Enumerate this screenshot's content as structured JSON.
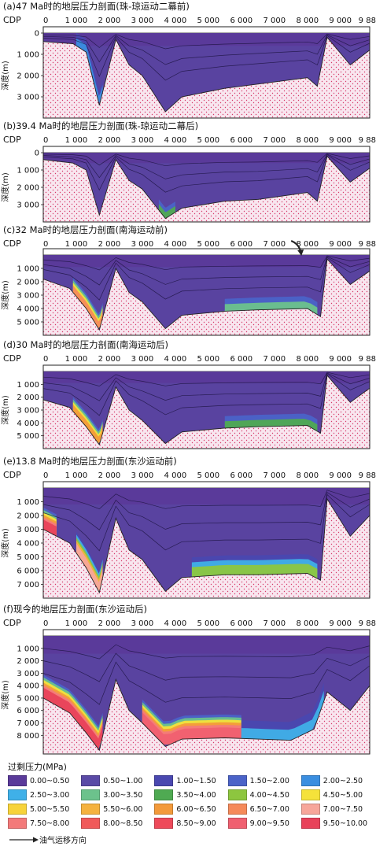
{
  "chart_data": [
    {
      "type": "area",
      "title": "(a)47 Ma时的地层压力剖面(珠-琼运动二幕前)",
      "xlabel": "CDP",
      "ylabel": "深度(m)",
      "x_ticks": [
        "0",
        "1 000",
        "2 000",
        "3 000",
        "4 000",
        "5 000",
        "6 000",
        "7 000",
        "8 000",
        "9 000",
        "9 888"
      ],
      "y_ticks": [
        "0",
        "1 000",
        "2 000",
        "3 000"
      ],
      "xlim": [
        0,
        9888
      ],
      "ylim": [
        0,
        4000
      ],
      "basement_depth": [
        [
          0,
          400
        ],
        [
          900,
          500
        ],
        [
          1300,
          900
        ],
        [
          1700,
          3400
        ],
        [
          2200,
          300
        ],
        [
          2600,
          1500
        ],
        [
          3000,
          2000
        ],
        [
          3700,
          3700
        ],
        [
          4200,
          3000
        ],
        [
          5500,
          2600
        ],
        [
          6500,
          2400
        ],
        [
          8000,
          2100
        ],
        [
          8300,
          2500
        ],
        [
          8600,
          200
        ],
        [
          9300,
          1500
        ],
        [
          9888,
          800
        ]
      ],
      "high_pressure_zones": [
        {
          "x_range": [
            1000,
            1800
          ],
          "max_pressure": 2.0
        }
      ],
      "migration_arrow": false
    },
    {
      "type": "area",
      "title": "(b)39.4 Ma时的地层压力剖面(珠-琼运动二幕后)",
      "xlabel": "CDP",
      "ylabel": "深度(m)",
      "x_ticks": [
        "0",
        "1 000",
        "2 000",
        "3 000",
        "4 000",
        "5 000",
        "6 000",
        "7 000",
        "8 000",
        "9 000",
        "9 888"
      ],
      "y_ticks": [
        "0",
        "1 000",
        "2 000",
        "3 000"
      ],
      "xlim": [
        0,
        9888
      ],
      "ylim": [
        0,
        4000
      ],
      "basement_depth": [
        [
          0,
          400
        ],
        [
          900,
          600
        ],
        [
          1300,
          1000
        ],
        [
          1700,
          3600
        ],
        [
          2200,
          400
        ],
        [
          2600,
          1600
        ],
        [
          3000,
          2100
        ],
        [
          3700,
          3800
        ],
        [
          4200,
          3200
        ],
        [
          5500,
          2800
        ],
        [
          6500,
          2700
        ],
        [
          8000,
          2300
        ],
        [
          8300,
          2800
        ],
        [
          8600,
          200
        ],
        [
          9300,
          1700
        ],
        [
          9888,
          900
        ]
      ],
      "high_pressure_zones": [
        {
          "x_range": [
            3500,
            4000
          ],
          "max_pressure": 3.5
        }
      ],
      "migration_arrow": false
    },
    {
      "type": "area",
      "title": "(c)32 Ma时的地层压力剖面(南海运动前)",
      "xlabel": "CDP",
      "ylabel": "深度(m)",
      "x_ticks": [
        "0",
        "1 000",
        "2 000",
        "3 000",
        "4 000",
        "5 000",
        "6 000",
        "7 000",
        "8 000",
        "9 000",
        "9 888"
      ],
      "y_ticks": [
        "1 000",
        "2 000",
        "3 000",
        "4 000",
        "5 000"
      ],
      "xlim": [
        0,
        9888
      ],
      "ylim": [
        0,
        6000
      ],
      "basement_depth": [
        [
          0,
          1800
        ],
        [
          800,
          2500
        ],
        [
          1300,
          4000
        ],
        [
          1700,
          5600
        ],
        [
          2200,
          1000
        ],
        [
          2600,
          2800
        ],
        [
          3000,
          3500
        ],
        [
          3700,
          5500
        ],
        [
          4200,
          4500
        ],
        [
          5500,
          4200
        ],
        [
          6500,
          4100
        ],
        [
          8000,
          4000
        ],
        [
          8400,
          4600
        ],
        [
          8600,
          300
        ],
        [
          9300,
          2200
        ],
        [
          9888,
          1200
        ]
      ],
      "high_pressure_zones": [
        {
          "x_range": [
            900,
            1800
          ],
          "max_pressure": 6.5
        },
        {
          "x_range": [
            5500,
            8300
          ],
          "max_pressure": 3.0
        }
      ],
      "migration_arrow": true
    },
    {
      "type": "area",
      "title": "(d)30 Ma时的地层压力剖面(南海运动后)",
      "xlabel": "CDP",
      "ylabel": "深度(m)",
      "x_ticks": [
        "0",
        "1 000",
        "2 000",
        "3 000",
        "4 000",
        "5 000",
        "6 000",
        "7 000",
        "8 000",
        "9 000",
        "9 888"
      ],
      "y_ticks": [
        "1 000",
        "2 000",
        "3 000",
        "4 000",
        "5 000"
      ],
      "xlim": [
        0,
        9888
      ],
      "ylim": [
        0,
        6000
      ],
      "basement_depth": [
        [
          0,
          2200
        ],
        [
          800,
          2800
        ],
        [
          1300,
          4300
        ],
        [
          1700,
          5700
        ],
        [
          2200,
          1200
        ],
        [
          2600,
          3000
        ],
        [
          3000,
          3800
        ],
        [
          3700,
          5600
        ],
        [
          4200,
          4700
        ],
        [
          5500,
          4400
        ],
        [
          6500,
          4300
        ],
        [
          8000,
          4200
        ],
        [
          8400,
          4800
        ],
        [
          8600,
          300
        ],
        [
          9300,
          2400
        ],
        [
          9888,
          1300
        ]
      ],
      "high_pressure_zones": [
        {
          "x_range": [
            900,
            1800
          ],
          "max_pressure": 6.0
        },
        {
          "x_range": [
            5500,
            8300
          ],
          "max_pressure": 3.5
        }
      ],
      "migration_arrow": false
    },
    {
      "type": "area",
      "title": "(e)13.8 Ma时的地层压力剖面(东沙运动前)",
      "xlabel": "CDP",
      "ylabel": "深度(m)",
      "x_ticks": [
        "0",
        "1 000",
        "2 000",
        "3 000",
        "4 000",
        "5 000",
        "6 000",
        "7 000",
        "8 000",
        "9 000",
        "9 888"
      ],
      "y_ticks": [
        "1 000",
        "2 000",
        "3 000",
        "4 000",
        "5 000",
        "6 000",
        "7 000"
      ],
      "xlim": [
        0,
        9888
      ],
      "ylim": [
        0,
        8000
      ],
      "basement_depth": [
        [
          0,
          3000
        ],
        [
          800,
          4000
        ],
        [
          1300,
          5800
        ],
        [
          1700,
          7600
        ],
        [
          2200,
          2200
        ],
        [
          2600,
          4500
        ],
        [
          3000,
          5200
        ],
        [
          3700,
          7500
        ],
        [
          4200,
          6500
        ],
        [
          5500,
          6300
        ],
        [
          6500,
          6300
        ],
        [
          8000,
          6200
        ],
        [
          8400,
          6700
        ],
        [
          8600,
          800
        ],
        [
          9300,
          3500
        ],
        [
          9888,
          2000
        ]
      ],
      "high_pressure_zones": [
        {
          "x_range": [
            0,
            400
          ],
          "max_pressure": 9.5
        },
        {
          "x_range": [
            1000,
            1800
          ],
          "max_pressure": 7.0
        },
        {
          "x_range": [
            4500,
            8300
          ],
          "max_pressure": 4.0
        }
      ],
      "migration_arrow": false
    },
    {
      "type": "area",
      "title": "(f)现今的地层压力剖面(东沙运动后)",
      "xlabel": "CDP",
      "ylabel": "深度(m)",
      "x_ticks": [
        "0",
        "1 000",
        "2 000",
        "3 000",
        "4 000",
        "5 000",
        "6 000",
        "7 000",
        "8 000",
        "9 000",
        "9 888"
      ],
      "y_ticks": [
        "1 000",
        "2 000",
        "3 000",
        "4 000",
        "5 000",
        "6 000",
        "7 000",
        "8 000"
      ],
      "xlim": [
        0,
        9888
      ],
      "ylim": [
        0,
        9500
      ],
      "basement_depth": [
        [
          0,
          5000
        ],
        [
          800,
          6200
        ],
        [
          1300,
          7800
        ],
        [
          1700,
          9200
        ],
        [
          2200,
          3500
        ],
        [
          2600,
          6000
        ],
        [
          3000,
          7000
        ],
        [
          3700,
          8900
        ],
        [
          4200,
          8300
        ],
        [
          5500,
          8200
        ],
        [
          6500,
          8300
        ],
        [
          7500,
          8400
        ],
        [
          8200,
          7500
        ],
        [
          8600,
          4500
        ],
        [
          9300,
          6000
        ],
        [
          9888,
          4000
        ]
      ],
      "high_pressure_zones": [
        {
          "x_range": [
            0,
            1800
          ],
          "max_pressure": 9.5
        },
        {
          "x_range": [
            3000,
            6000
          ],
          "max_pressure": 9.0
        },
        {
          "x_range": [
            6000,
            8500
          ],
          "max_pressure": 2.5
        }
      ],
      "migration_arrow": false
    }
  ],
  "legend": {
    "title": "过剩压力(MPa)",
    "items": [
      {
        "label": "0.00~0.50",
        "color": "#5a3a9a"
      },
      {
        "label": "0.50~1.00",
        "color": "#5a4aa6"
      },
      {
        "label": "1.00~1.50",
        "color": "#4a48b0"
      },
      {
        "label": "1.50~2.00",
        "color": "#4b63c8"
      },
      {
        "label": "2.00~2.50",
        "color": "#3a8ee0"
      },
      {
        "label": "2.50~3.00",
        "color": "#3fb0e8"
      },
      {
        "label": "3.00~3.50",
        "color": "#6cc28c"
      },
      {
        "label": "3.50~4.00",
        "color": "#4faa52"
      },
      {
        "label": "4.00~4.50",
        "color": "#8dc63f"
      },
      {
        "label": "4.50~5.00",
        "color": "#f5e23a"
      },
      {
        "label": "5.00~5.50",
        "color": "#f7d33a"
      },
      {
        "label": "5.50~6.00",
        "color": "#f5b23e"
      },
      {
        "label": "6.00~6.50",
        "color": "#f39a3a"
      },
      {
        "label": "6.50~7.00",
        "color": "#f58a5a"
      },
      {
        "label": "7.00~7.50",
        "color": "#f7a69a"
      },
      {
        "label": "7.50~8.00",
        "color": "#f37a7a"
      },
      {
        "label": "8.00~8.50",
        "color": "#f05a5a"
      },
      {
        "label": "8.50~9.00",
        "color": "#ee4a5a"
      },
      {
        "label": "9.00~9.50",
        "color": "#f06070"
      },
      {
        "label": "9.50~10.00",
        "color": "#e8425a"
      }
    ],
    "arrow_label": "油气运移方向"
  },
  "colors": {
    "basement_fill": "#f8e6ef",
    "basement_dots": "#d63a6a",
    "frame": "#222222"
  }
}
